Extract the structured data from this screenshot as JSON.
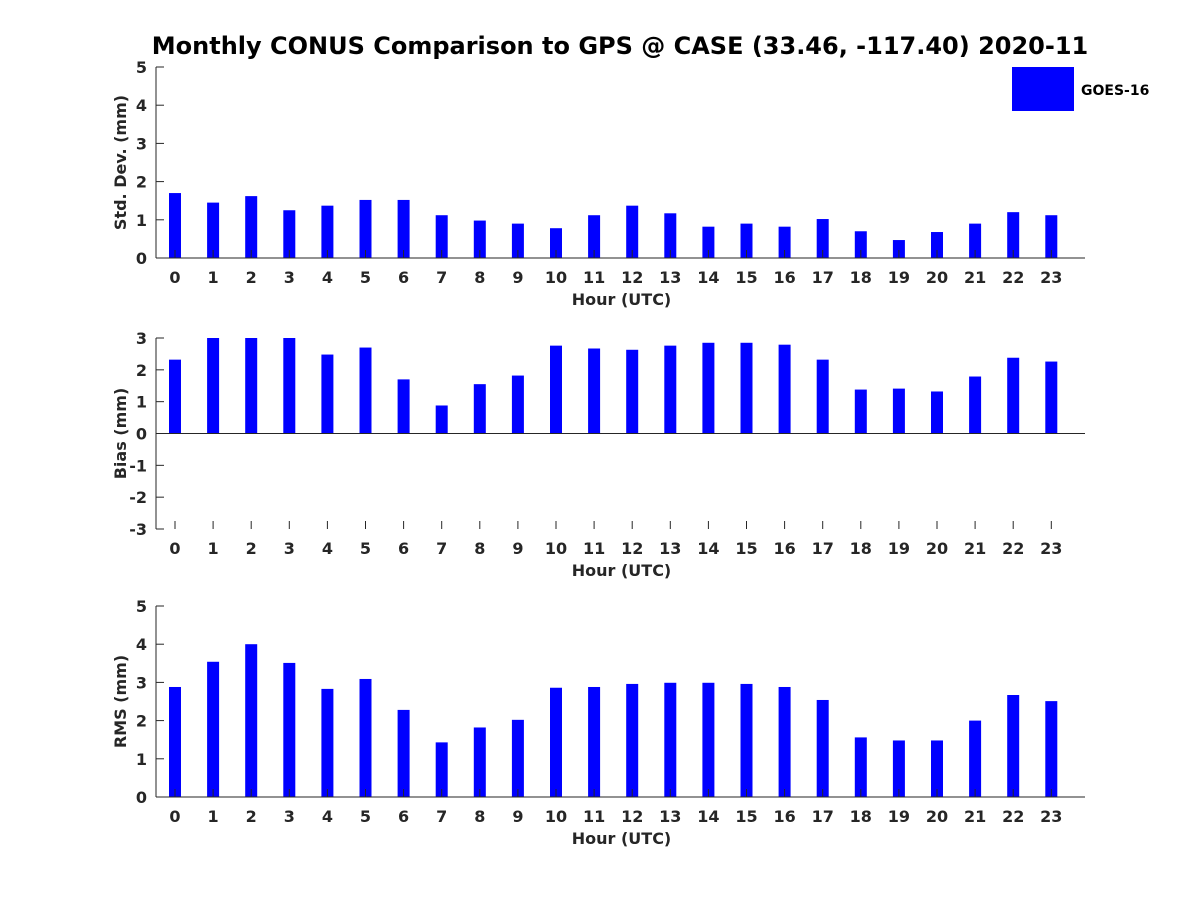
{
  "chart_data": {
    "title": "Monthly CONUS Comparison to GPS @ CASE (33.46, -117.40) 2020-11",
    "legend": {
      "label": "GOES-16",
      "color": "#0000FF",
      "placement": "top-right"
    },
    "panels": [
      {
        "type": "bar",
        "ylabel": "Std. Dev. (mm)",
        "xlabel": "Hour (UTC)",
        "ylim": [
          0,
          5
        ],
        "yticks": [
          0,
          1,
          2,
          3,
          4,
          5
        ],
        "categories": [
          0,
          1,
          2,
          3,
          4,
          5,
          6,
          7,
          8,
          9,
          10,
          11,
          12,
          13,
          14,
          15,
          16,
          17,
          18,
          19,
          20,
          21,
          22,
          23
        ],
        "values": [
          1.7,
          1.45,
          1.62,
          1.25,
          1.37,
          1.52,
          1.52,
          1.12,
          0.98,
          0.9,
          0.78,
          1.12,
          1.37,
          1.17,
          0.82,
          0.9,
          0.82,
          1.02,
          0.7,
          0.47,
          0.68,
          0.9,
          1.2,
          1.12
        ]
      },
      {
        "type": "bar",
        "ylabel": "Bias (mm)",
        "xlabel": "Hour (UTC)",
        "ylim": [
          -3,
          3
        ],
        "yticks": [
          -3,
          -2,
          -1,
          0,
          1,
          2,
          3
        ],
        "categories": [
          0,
          1,
          2,
          3,
          4,
          5,
          6,
          7,
          8,
          9,
          10,
          11,
          12,
          13,
          14,
          15,
          16,
          17,
          18,
          19,
          20,
          21,
          22,
          23
        ],
        "values": [
          2.32,
          3.0,
          3.0,
          3.0,
          2.48,
          2.7,
          1.7,
          0.88,
          1.55,
          1.82,
          2.76,
          2.67,
          2.63,
          2.76,
          2.85,
          2.85,
          2.79,
          2.32,
          1.38,
          1.41,
          1.32,
          1.79,
          2.38,
          2.26
        ]
      },
      {
        "type": "bar",
        "ylabel": "RMS (mm)",
        "xlabel": "Hour (UTC)",
        "ylim": [
          0,
          5
        ],
        "yticks": [
          0,
          1,
          2,
          3,
          4,
          5
        ],
        "categories": [
          0,
          1,
          2,
          3,
          4,
          5,
          6,
          7,
          8,
          9,
          10,
          11,
          12,
          13,
          14,
          15,
          16,
          17,
          18,
          19,
          20,
          21,
          22,
          23
        ],
        "values": [
          2.88,
          3.54,
          4.0,
          3.51,
          2.83,
          3.09,
          2.28,
          1.43,
          1.82,
          2.02,
          2.86,
          2.88,
          2.96,
          2.99,
          2.99,
          2.96,
          2.88,
          2.54,
          1.56,
          1.48,
          1.48,
          2.0,
          2.67,
          2.51
        ]
      }
    ]
  }
}
